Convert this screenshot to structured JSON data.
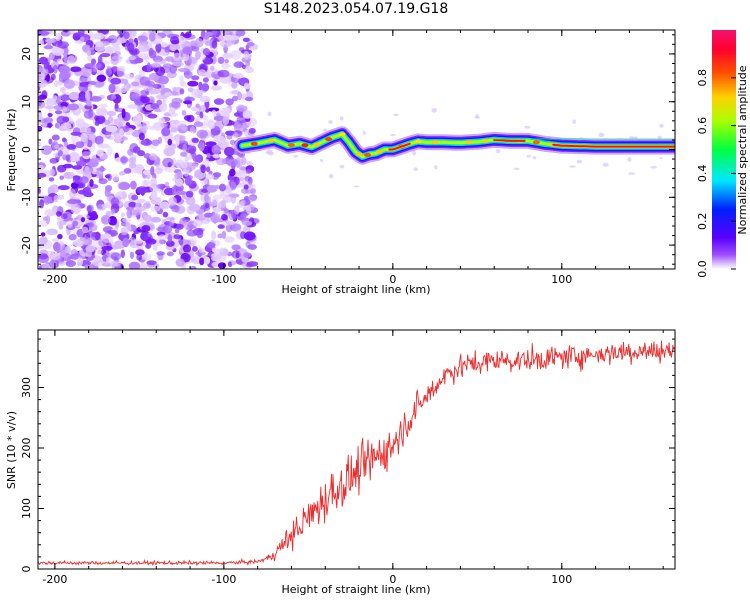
{
  "title": "S148.2023.054.07.19.G18",
  "chart_data": [
    {
      "type": "heatmap",
      "name": "spectrogram",
      "xlabel": "Height of straight line (km)",
      "ylabel": "Frequency (Hz)",
      "xlim": [
        -210,
        167
      ],
      "ylim": [
        -25,
        25
      ],
      "xticks": [
        -200,
        -100,
        0,
        100
      ],
      "yticks": [
        -20,
        -10,
        0,
        10,
        20
      ],
      "noise_region_x": [
        -210,
        -82
      ],
      "signal_region_x": [
        -89,
        167
      ],
      "signal_track": {
        "x": [
          -89,
          -80,
          -70,
          -62,
          -55,
          -48,
          -42,
          -36,
          -30,
          -26,
          -22,
          -18,
          -14,
          -10,
          -5,
          0,
          5,
          10,
          15,
          20,
          30,
          40,
          50,
          60,
          70,
          80,
          90,
          100,
          120,
          140,
          167
        ],
        "y": [
          0.8,
          1.3,
          2.0,
          0.8,
          1.2,
          0.5,
          1.5,
          2.5,
          3.2,
          1.5,
          -0.5,
          -1.5,
          -1.0,
          -0.8,
          0.0,
          0.0,
          0.6,
          1.2,
          1.7,
          1.5,
          1.5,
          1.4,
          1.6,
          2.0,
          1.8,
          1.8,
          1.2,
          0.8,
          0.6,
          0.6,
          0.6
        ]
      },
      "colorbar": {
        "label": "Normalized spectral amplitude",
        "range": [
          0.0,
          1.0
        ],
        "ticks": [
          "0.0",
          "0.2",
          "0.4",
          "0.6",
          "0.8"
        ],
        "colors": [
          "#ffffff",
          "#7b00ff",
          "#0000ff",
          "#00ffff",
          "#00ff00",
          "#ffff00",
          "#ff7f00",
          "#ff0000",
          "#ff0080"
        ]
      }
    },
    {
      "type": "line",
      "name": "snr",
      "xlabel": "Height of straight line (km)",
      "ylabel": "SNR (10 * v/v)",
      "xlim": [
        -210,
        167
      ],
      "ylim": [
        0,
        395
      ],
      "xticks": [
        -200,
        -100,
        0,
        100
      ],
      "yticks": [
        0,
        100,
        200,
        300
      ],
      "color": "#ee2c2c",
      "trend": {
        "x": [
          -210,
          -150,
          -100,
          -80,
          -72,
          -65,
          -55,
          -45,
          -35,
          -25,
          -15,
          -5,
          0,
          10,
          20,
          25,
          30,
          40,
          50,
          60,
          80,
          100,
          120,
          140,
          167
        ],
        "y": [
          10,
          10,
          10,
          12,
          20,
          40,
          70,
          100,
          130,
          150,
          175,
          195,
          205,
          250,
          285,
          300,
          320,
          335,
          340,
          345,
          345,
          350,
          355,
          360,
          360
        ]
      },
      "noise_amplitude": {
        "x": [
          -210,
          -80,
          -70,
          -60,
          -40,
          -20,
          0,
          20,
          40,
          80,
          167
        ],
        "y": [
          4,
          4,
          12,
          30,
          50,
          50,
          40,
          30,
          25,
          25,
          25
        ]
      }
    }
  ]
}
